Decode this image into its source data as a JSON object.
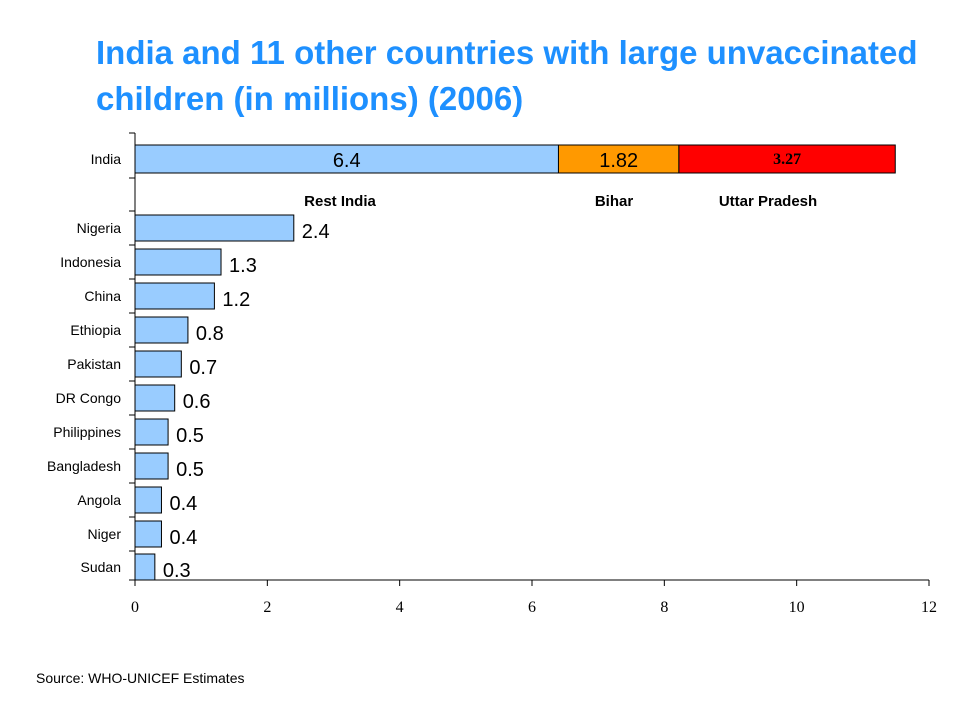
{
  "title": "India and 11 other countries with large unvaccinated children (in millions) (2006)",
  "source": "Source: WHO-UNICEF Estimates",
  "colors": {
    "title": "#1e90ff",
    "bar": "#99ccff",
    "bihar": "#ff9900",
    "uttar_pradesh": "#ff0000"
  },
  "chart_data": {
    "type": "bar",
    "orientation": "horizontal",
    "xlim": [
      0,
      12
    ],
    "x_ticks": [
      "0",
      "2",
      "4",
      "6",
      "8",
      "10",
      "12"
    ],
    "india": {
      "category": "India",
      "segments": [
        {
          "name": "Rest India",
          "value": 6.4,
          "label": "6.4",
          "color": "#99ccff"
        },
        {
          "name": "Bihar",
          "value": 1.82,
          "label": "1.82",
          "color": "#ff9900"
        },
        {
          "name": "Uttar Pradesh",
          "value": 3.27,
          "label": "3.27",
          "color": "#ff0000"
        }
      ]
    },
    "categories": [
      "Nigeria",
      "Indonesia",
      "China",
      "Ethiopia",
      "Pakistan",
      "DR Congo",
      "Philippines",
      "Bangladesh",
      "Angola",
      "Niger",
      "Sudan"
    ],
    "values": [
      2.4,
      1.3,
      1.2,
      0.8,
      0.7,
      0.6,
      0.5,
      0.5,
      0.4,
      0.4,
      0.3
    ],
    "labels": [
      "2.4",
      "1.3",
      "1.2",
      "0.8",
      "0.7",
      "0.6",
      "0.5",
      "0.5",
      "0.4",
      "0.4",
      "0.3"
    ],
    "grid": false,
    "legend": "segment names shown under India bar"
  }
}
